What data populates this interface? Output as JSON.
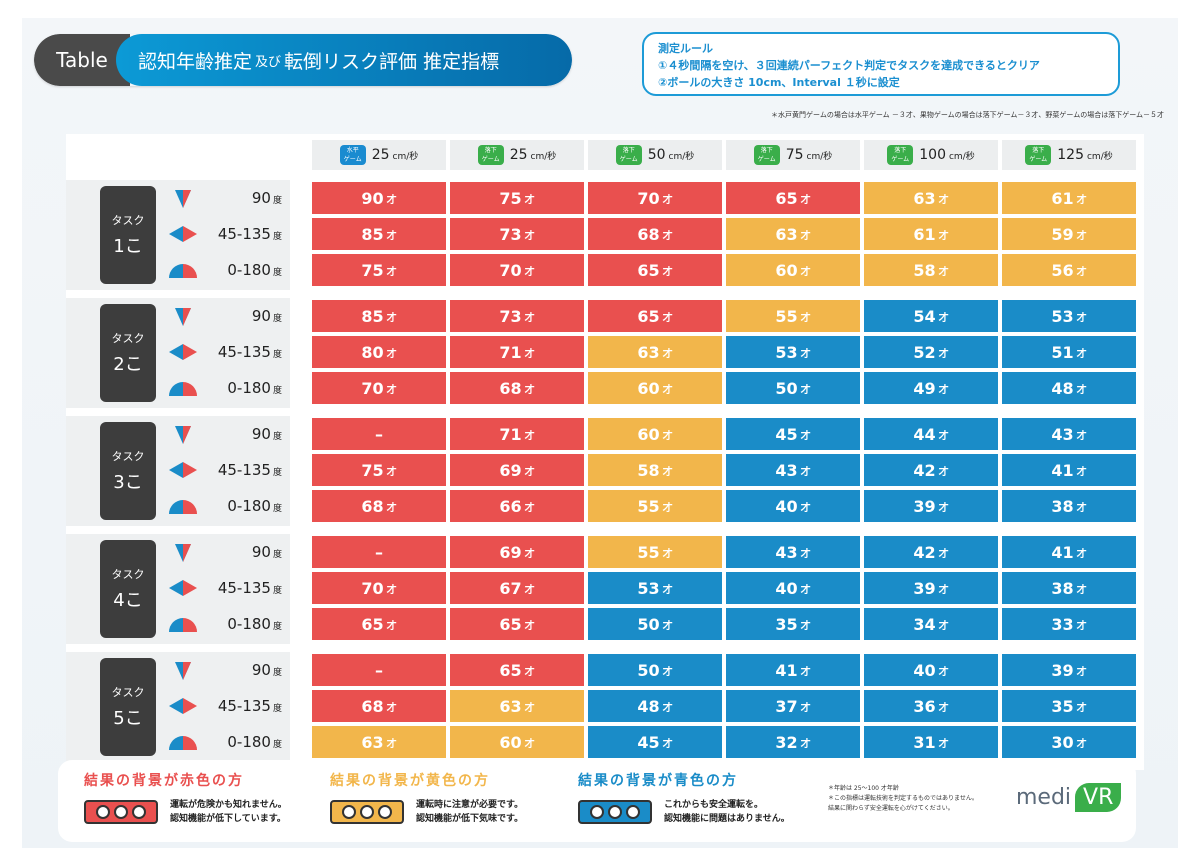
{
  "header": {
    "tag": "Table",
    "title_a": "認知年齢推定",
    "title_small": "及び",
    "title_b": "転倒リスク評価 推定指標"
  },
  "rules": {
    "title": "測定ルール",
    "line1": "①４秒間隔を空け、３回連続パーフェクト判定でタスクを達成できるとクリア",
    "line2": "②ボールの大きさ 10cm、Interval １秒に設定"
  },
  "top_note": "＊水戸黄門ゲームの場合は水平ゲーム －３才、果物ゲームの場合は落下ゲーム－３才、野菜ゲームの場合は落下ゲーム－５才",
  "columns": [
    {
      "badge_top": "水平",
      "badge_bottom": "ゲーム",
      "badge_color": "blue",
      "speed": "25",
      "unit": "cm/秒"
    },
    {
      "badge_top": "落下",
      "badge_bottom": "ゲーム",
      "badge_color": "green",
      "speed": "25",
      "unit": "cm/秒"
    },
    {
      "badge_top": "落下",
      "badge_bottom": "ゲーム",
      "badge_color": "green",
      "speed": "50",
      "unit": "cm/秒"
    },
    {
      "badge_top": "落下",
      "badge_bottom": "ゲーム",
      "badge_color": "green",
      "speed": "75",
      "unit": "cm/秒"
    },
    {
      "badge_top": "落下",
      "badge_bottom": "ゲーム",
      "badge_color": "green",
      "speed": "100",
      "unit": "cm/秒"
    },
    {
      "badge_top": "落下",
      "badge_bottom": "ゲーム",
      "badge_color": "green",
      "speed": "125",
      "unit": "cm/秒"
    }
  ],
  "age_unit": "才",
  "degree_unit": "度",
  "angles": [
    "90",
    "45-135",
    "0-180"
  ],
  "tasks": [
    {
      "label_top": "タスク",
      "label_bottom": "1こ",
      "rows": [
        [
          [
            "90",
            "red"
          ],
          [
            "75",
            "red"
          ],
          [
            "70",
            "red"
          ],
          [
            "65",
            "red"
          ],
          [
            "63",
            "yellow"
          ],
          [
            "61",
            "yellow"
          ]
        ],
        [
          [
            "85",
            "red"
          ],
          [
            "73",
            "red"
          ],
          [
            "68",
            "red"
          ],
          [
            "63",
            "yellow"
          ],
          [
            "61",
            "yellow"
          ],
          [
            "59",
            "yellow"
          ]
        ],
        [
          [
            "75",
            "red"
          ],
          [
            "70",
            "red"
          ],
          [
            "65",
            "red"
          ],
          [
            "60",
            "yellow"
          ],
          [
            "58",
            "yellow"
          ],
          [
            "56",
            "yellow"
          ]
        ]
      ]
    },
    {
      "label_top": "タスク",
      "label_bottom": "2こ",
      "rows": [
        [
          [
            "85",
            "red"
          ],
          [
            "73",
            "red"
          ],
          [
            "65",
            "red"
          ],
          [
            "55",
            "yellow"
          ],
          [
            "54",
            "blue"
          ],
          [
            "53",
            "blue"
          ]
        ],
        [
          [
            "80",
            "red"
          ],
          [
            "71",
            "red"
          ],
          [
            "63",
            "yellow"
          ],
          [
            "53",
            "blue"
          ],
          [
            "52",
            "blue"
          ],
          [
            "51",
            "blue"
          ]
        ],
        [
          [
            "70",
            "red"
          ],
          [
            "68",
            "red"
          ],
          [
            "60",
            "yellow"
          ],
          [
            "50",
            "blue"
          ],
          [
            "49",
            "blue"
          ],
          [
            "48",
            "blue"
          ]
        ]
      ]
    },
    {
      "label_top": "タスク",
      "label_bottom": "3こ",
      "rows": [
        [
          [
            "–",
            "red"
          ],
          [
            "71",
            "red"
          ],
          [
            "60",
            "yellow"
          ],
          [
            "45",
            "blue"
          ],
          [
            "44",
            "blue"
          ],
          [
            "43",
            "blue"
          ]
        ],
        [
          [
            "75",
            "red"
          ],
          [
            "69",
            "red"
          ],
          [
            "58",
            "yellow"
          ],
          [
            "43",
            "blue"
          ],
          [
            "42",
            "blue"
          ],
          [
            "41",
            "blue"
          ]
        ],
        [
          [
            "68",
            "red"
          ],
          [
            "66",
            "red"
          ],
          [
            "55",
            "yellow"
          ],
          [
            "40",
            "blue"
          ],
          [
            "39",
            "blue"
          ],
          [
            "38",
            "blue"
          ]
        ]
      ]
    },
    {
      "label_top": "タスク",
      "label_bottom": "4こ",
      "rows": [
        [
          [
            "–",
            "red"
          ],
          [
            "69",
            "red"
          ],
          [
            "55",
            "yellow"
          ],
          [
            "43",
            "blue"
          ],
          [
            "42",
            "blue"
          ],
          [
            "41",
            "blue"
          ]
        ],
        [
          [
            "70",
            "red"
          ],
          [
            "67",
            "red"
          ],
          [
            "53",
            "blue"
          ],
          [
            "40",
            "blue"
          ],
          [
            "39",
            "blue"
          ],
          [
            "38",
            "blue"
          ]
        ],
        [
          [
            "65",
            "red"
          ],
          [
            "65",
            "red"
          ],
          [
            "50",
            "blue"
          ],
          [
            "35",
            "blue"
          ],
          [
            "34",
            "blue"
          ],
          [
            "33",
            "blue"
          ]
        ]
      ]
    },
    {
      "label_top": "タスク",
      "label_bottom": "5こ",
      "rows": [
        [
          [
            "–",
            "red"
          ],
          [
            "65",
            "red"
          ],
          [
            "50",
            "blue"
          ],
          [
            "41",
            "blue"
          ],
          [
            "40",
            "blue"
          ],
          [
            "39",
            "blue"
          ]
        ],
        [
          [
            "68",
            "red"
          ],
          [
            "63",
            "yellow"
          ],
          [
            "48",
            "blue"
          ],
          [
            "37",
            "blue"
          ],
          [
            "36",
            "blue"
          ],
          [
            "35",
            "blue"
          ]
        ],
        [
          [
            "63",
            "yellow"
          ],
          [
            "60",
            "yellow"
          ],
          [
            "45",
            "blue"
          ],
          [
            "32",
            "blue"
          ],
          [
            "31",
            "blue"
          ],
          [
            "30",
            "blue"
          ]
        ]
      ]
    }
  ],
  "legend": {
    "red": {
      "head": "結果の背景が赤色の方",
      "line1": "運転が危険かも知れません。",
      "line2": "認知機能が低下しています。",
      "color": "#e9504f"
    },
    "yellow": {
      "head": "結果の背景が黄色の方",
      "line1": "運転時に注意が必要です。",
      "line2": "認知機能が低下気味です。",
      "color": "#f2b64b"
    },
    "blue": {
      "head": "結果の背景が青色の方",
      "line1": "これからも安全運転を。",
      "line2": "認知機能に問題はありません。",
      "color": "#1a8cc8"
    },
    "note1": "＊年齢は 25～100 才年齢",
    "note2": "＊この指標は運転技術を判定するものではありません。",
    "note3": "結果に関わらず安全運転を心がけてください。"
  },
  "logo": {
    "medi": "medi",
    "vr": "VR"
  }
}
